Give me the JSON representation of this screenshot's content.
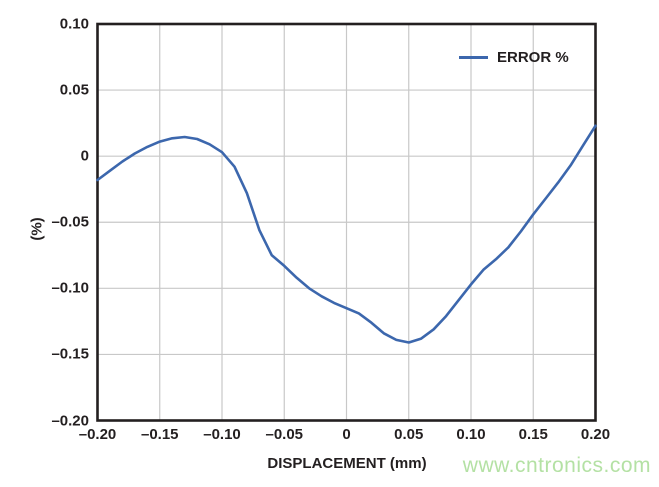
{
  "figure": {
    "watermark": "www.cntronics.com"
  },
  "chart_data": {
    "type": "line",
    "title": "",
    "xlabel": "DISPLACEMENT (mm)",
    "ylabel": "(%)",
    "xlim": [
      -0.2,
      0.2
    ],
    "ylim": [
      -0.2,
      0.1
    ],
    "grid": true,
    "legend": {
      "position": "top-right",
      "entries": [
        {
          "label": "ERROR %",
          "color": "#3c67ad"
        }
      ]
    },
    "x_ticks": [
      {
        "value": -0.2,
        "label": "–0.20"
      },
      {
        "value": -0.15,
        "label": "–0.15"
      },
      {
        "value": -0.1,
        "label": "–0.10"
      },
      {
        "value": -0.05,
        "label": "–0.05"
      },
      {
        "value": 0.0,
        "label": "0"
      },
      {
        "value": 0.05,
        "label": "0.05"
      },
      {
        "value": 0.1,
        "label": "0.10"
      },
      {
        "value": 0.15,
        "label": "0.15"
      },
      {
        "value": 0.2,
        "label": "0.20"
      }
    ],
    "y_ticks": [
      {
        "value": 0.1,
        "label": "0.10"
      },
      {
        "value": 0.05,
        "label": "0.05"
      },
      {
        "value": 0.0,
        "label": "0"
      },
      {
        "value": -0.05,
        "label": "–0.05"
      },
      {
        "value": -0.1,
        "label": "–0.10"
      },
      {
        "value": -0.15,
        "label": "–0.15"
      },
      {
        "value": -0.2,
        "label": "–0.20"
      }
    ],
    "series": [
      {
        "name": "ERROR %",
        "color": "#3c67ad",
        "points": [
          [
            -0.2,
            -0.018
          ],
          [
            -0.19,
            -0.011
          ],
          [
            -0.18,
            -0.004
          ],
          [
            -0.17,
            0.002
          ],
          [
            -0.16,
            0.007
          ],
          [
            -0.15,
            0.011
          ],
          [
            -0.14,
            0.0135
          ],
          [
            -0.13,
            0.0145
          ],
          [
            -0.12,
            0.013
          ],
          [
            -0.11,
            0.009
          ],
          [
            -0.1,
            0.003
          ],
          [
            -0.09,
            -0.008
          ],
          [
            -0.08,
            -0.028
          ],
          [
            -0.07,
            -0.056
          ],
          [
            -0.06,
            -0.075
          ],
          [
            -0.05,
            -0.083
          ],
          [
            -0.04,
            -0.092
          ],
          [
            -0.03,
            -0.1
          ],
          [
            -0.02,
            -0.106
          ],
          [
            -0.01,
            -0.111
          ],
          [
            0.0,
            -0.115
          ],
          [
            0.01,
            -0.119
          ],
          [
            0.02,
            -0.126
          ],
          [
            0.03,
            -0.134
          ],
          [
            0.04,
            -0.139
          ],
          [
            0.05,
            -0.141
          ],
          [
            0.06,
            -0.138
          ],
          [
            0.07,
            -0.131
          ],
          [
            0.08,
            -0.121
          ],
          [
            0.09,
            -0.109
          ],
          [
            0.1,
            -0.097
          ],
          [
            0.11,
            -0.086
          ],
          [
            0.12,
            -0.078
          ],
          [
            0.13,
            -0.069
          ],
          [
            0.14,
            -0.057
          ],
          [
            0.15,
            -0.044
          ],
          [
            0.16,
            -0.032
          ],
          [
            0.17,
            -0.02
          ],
          [
            0.18,
            -0.007
          ],
          [
            0.19,
            0.008
          ],
          [
            0.2,
            0.023
          ]
        ]
      }
    ],
    "colors": {
      "grid": "#c8c8c8",
      "frame": "#231f20",
      "text": "#231f20",
      "watermark": "#b4e1a4",
      "background": "#ffffff"
    }
  }
}
